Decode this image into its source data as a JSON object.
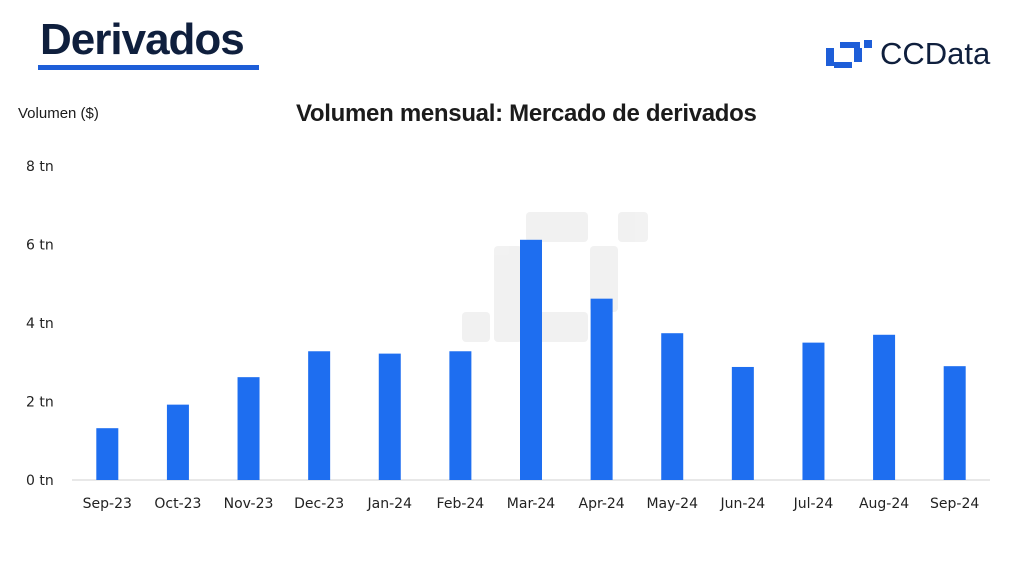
{
  "header": {
    "title": "Derivados",
    "brand": "CCData"
  },
  "colors": {
    "bar": "#1e6ef0",
    "accent": "#1e5ed8",
    "title": "#0f1f3d"
  },
  "chart_data": {
    "type": "bar",
    "title": "Volumen mensual: Mercado de derivados",
    "ylabel": "Volumen ($)",
    "xlabel": "",
    "categories": [
      "Sep-23",
      "Oct-23",
      "Nov-23",
      "Dec-23",
      "Jan-24",
      "Feb-24",
      "Mar-24",
      "Apr-24",
      "May-24",
      "Jun-24",
      "Jul-24",
      "Aug-24",
      "Sep-24"
    ],
    "values": [
      1.32,
      1.92,
      2.62,
      3.28,
      3.22,
      3.28,
      6.12,
      4.62,
      3.74,
      2.88,
      3.5,
      3.7,
      2.9
    ],
    "unit": "tn",
    "ylim": [
      0,
      8
    ],
    "yticks": [
      {
        "value": 0,
        "label": "0 tn"
      },
      {
        "value": 2,
        "label": "2 tn"
      },
      {
        "value": 4,
        "label": "4 tn"
      },
      {
        "value": 6,
        "label": "6 tn"
      },
      {
        "value": 8,
        "label": "8 tn"
      }
    ],
    "grid": false
  }
}
